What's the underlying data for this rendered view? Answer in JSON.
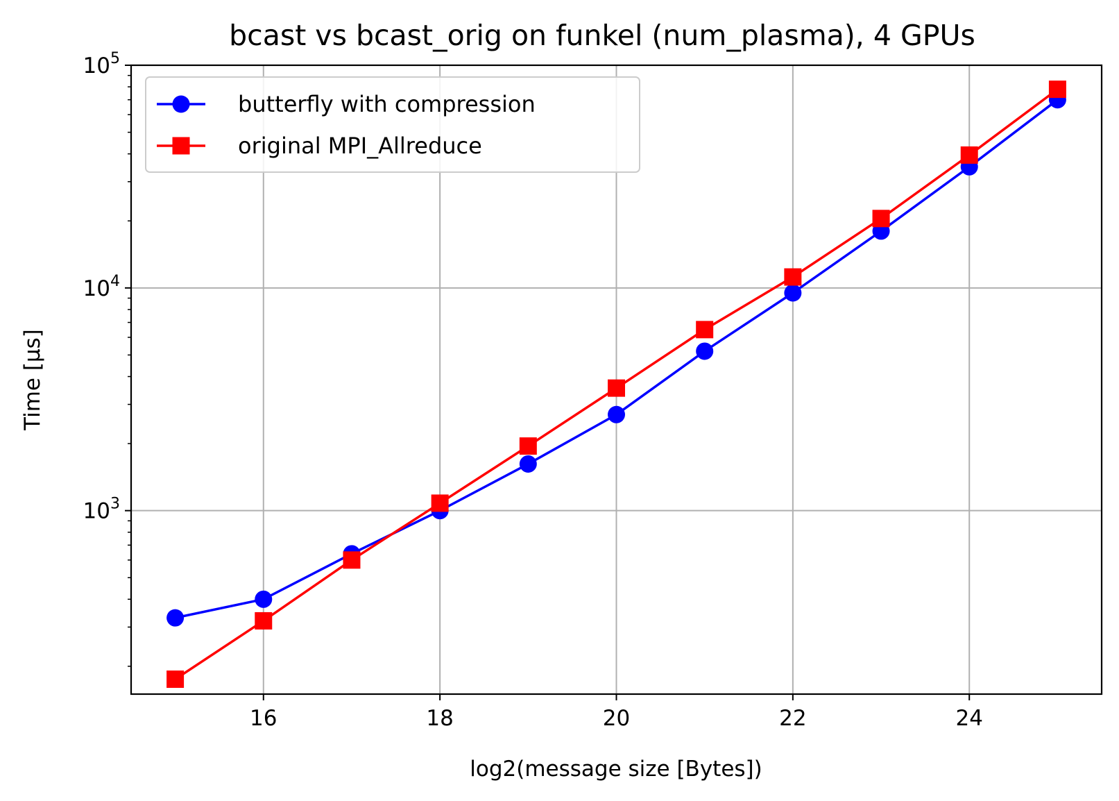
{
  "chart_data": {
    "type": "line",
    "title": "bcast vs bcast_orig on funkel (num_plasma), 4 GPUs",
    "xlabel": "log2(message size [Bytes])",
    "ylabel": "Time [µs]",
    "xlim": [
      14.5,
      25.5
    ],
    "ylim": [
      150,
      100000
    ],
    "yscale": "log",
    "grid": true,
    "legend_position": "upper-left",
    "x_ticks": [
      16,
      18,
      20,
      22,
      24
    ],
    "x_tick_labels": [
      "16",
      "18",
      "20",
      "22",
      "24"
    ],
    "y_ticks": [
      1000,
      10000,
      100000
    ],
    "y_tick_bases": [
      "10",
      "10",
      "10"
    ],
    "y_tick_exponents": [
      "3",
      "4",
      "5"
    ],
    "x": [
      15,
      16,
      17,
      18,
      19,
      20,
      21,
      22,
      23,
      24,
      25
    ],
    "series": [
      {
        "name": "butterfly with compression",
        "color": "#0000ff",
        "marker": "circle",
        "values": [
          330,
          400,
          640,
          1000,
          1620,
          2700,
          5200,
          9500,
          18000,
          35000,
          70000
        ]
      },
      {
        "name": "original MPI_Allreduce",
        "color": "#ff0000",
        "marker": "square",
        "values": [
          175,
          320,
          600,
          1080,
          1950,
          3550,
          6500,
          11200,
          20500,
          39500,
          78000
        ]
      }
    ]
  }
}
